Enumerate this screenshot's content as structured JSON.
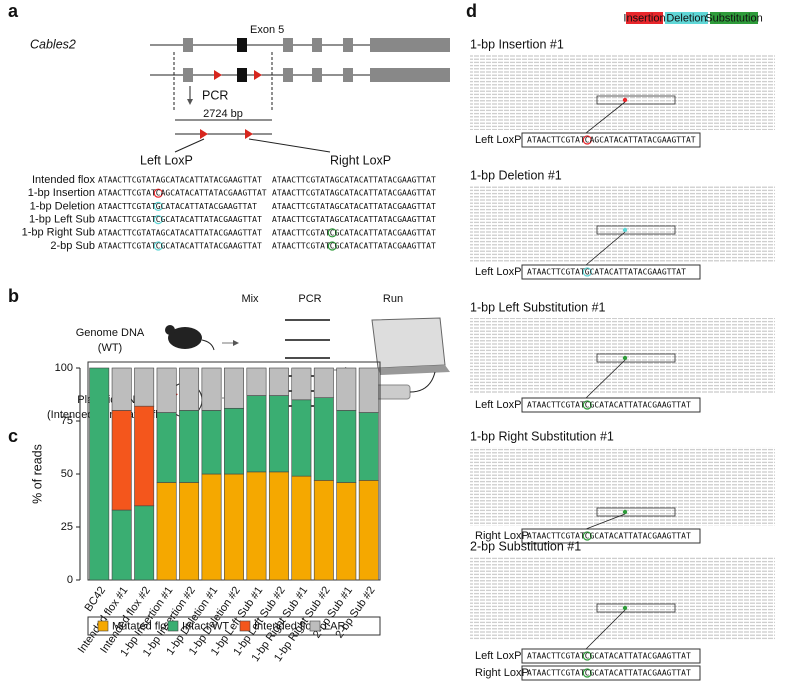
{
  "panel_labels": [
    "a",
    "b",
    "c",
    "d"
  ],
  "panel_a": {
    "gene": "Cables2",
    "exon": "Exon 5",
    "pcr": "PCR",
    "length": "2724 bp",
    "left": "Left LoxP",
    "right": "Right LoxP",
    "rows": [
      {
        "label": "Intended flox",
        "left": "ATAACTTCGTATAGCATACATTATACGAAGTTAT",
        "right": "ATAACTTCGTATAGCATACATTATACGAAGTTAT"
      },
      {
        "label": "1-bp Insertion",
        "left": "ATAACTTCGTATCAGCATACATTATACGAAGTTAT",
        "right": "ATAACTTCGTATAGCATACATTATACGAAGTTAT"
      },
      {
        "label": "1-bp Deletion",
        "left": "ATAACTTCGTATGCATACATTATACGAAGTTAT",
        "right": "ATAACTTCGTATAGCATACATTATACGAAGTTAT"
      },
      {
        "label": "1-bp Left Sub",
        "left": "ATAACTTCGTATCGCATACATTATACGAAGTTAT",
        "right": "ATAACTTCGTATAGCATACATTATACGAAGTTAT"
      },
      {
        "label": "1-bp Right Sub",
        "left": "ATAACTTCGTATAGCATACATTATACGAAGTTAT",
        "right": "ATAACTTCGTATCGCATACATTATACGAAGTTAT"
      },
      {
        "label": "2-bp Sub",
        "left": "ATAACTTCGTATCGCATACATTATACGAAGTTAT",
        "right": "ATAACTTCGTATCGCATACATTATACGAAGTTAT"
      }
    ]
  },
  "panel_b": {
    "headers": [
      "Mix",
      "PCR",
      "Run"
    ],
    "genome": [
      "Genome DNA",
      "(WT)"
    ],
    "plasmid": [
      "Plasmid DNA",
      "(Intended or mutated flox)"
    ]
  },
  "chart_data": {
    "type": "bar",
    "stacked": true,
    "ylabel": "% of reads",
    "categories": [
      "BC42",
      "Intended flox #1",
      "Intended flox #2",
      "1-bp Insertion #1",
      "1-bp Insertion #2",
      "1-bp Deletion #1",
      "1-bp Deletion #2",
      "1-bp Left Sub #1",
      "1-bp Left Sub #2",
      "1-bp Right Sub #1",
      "1-bp Right Sub #2",
      "2-bp Sub #1",
      "2-bp Sub #2"
    ],
    "ylim": [
      0,
      100
    ],
    "yticks": [
      0,
      25,
      50,
      75,
      100
    ],
    "legend": "bottom",
    "series": [
      {
        "name": "Mutated flox",
        "color": "#f5a800",
        "values": [
          0,
          0,
          0,
          46,
          46,
          50,
          50,
          51,
          51,
          49,
          47,
          46,
          47
        ]
      },
      {
        "name": "Intact WT",
        "color": "#3aae72",
        "values": [
          100,
          33,
          35,
          33,
          34,
          30,
          31,
          36,
          36,
          36,
          39,
          34,
          32
        ]
      },
      {
        "name": "Intended flox",
        "color": "#f4561c",
        "values": [
          0,
          47,
          47,
          0,
          0,
          0,
          0,
          0,
          0,
          0,
          0,
          0,
          0
        ]
      },
      {
        "name": "LAR",
        "color": "#bdbdbd",
        "values": [
          0,
          20,
          18,
          21,
          20,
          20,
          19,
          13,
          13,
          15,
          14,
          20,
          21
        ]
      }
    ]
  },
  "panel_d": {
    "legend": [
      {
        "name": "Insertion",
        "color": "#e8262b"
      },
      {
        "name": "Deletion",
        "color": "#5fd6d6"
      },
      {
        "name": "Substitution",
        "color": "#2e9b3a"
      }
    ],
    "sections": [
      {
        "title": "1-bp Insertion #1",
        "loxp": [
          {
            "label": "Left LoxP",
            "seq": "ATAACTTCGTATCAGCATACATTATACGAAGTTAT"
          }
        ]
      },
      {
        "title": "1-bp Deletion #1",
        "loxp": [
          {
            "label": "Left LoxP",
            "seq": "ATAACTTCGTATGCATACATTATACGAAGTTAT"
          }
        ]
      },
      {
        "title": "1-bp Left Substitution #1",
        "loxp": [
          {
            "label": "Left LoxP",
            "seq": "ATAACTTCGTATCGCATACATTATACGAAGTTAT"
          }
        ]
      },
      {
        "title": "1-bp Right Substitution #1",
        "loxp": [
          {
            "label": "Right LoxP",
            "seq": "ATAACTTCGTATCGCATACATTATACGAAGTTAT"
          }
        ]
      },
      {
        "title": "2-bp Substitution #1",
        "loxp": [
          {
            "label": "Left LoxP",
            "seq": "ATAACTTCGTATCGCATACATTATACGAAGTTAT"
          },
          {
            "label": "Right LoxP",
            "seq": "ATAACTTCGTATCGCATACATTATACGAAGTTAT"
          }
        ]
      }
    ]
  }
}
